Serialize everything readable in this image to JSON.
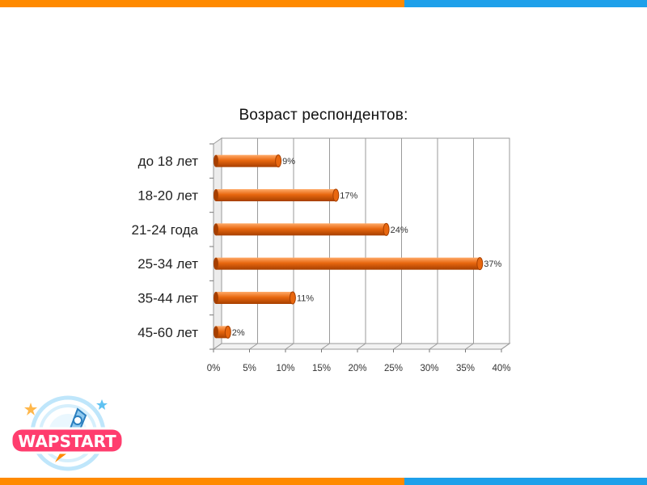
{
  "colors": {
    "band_orange": "#ff8a00",
    "band_blue": "#1ea0ea",
    "bar": "#e8670f",
    "bar_light": "#ffab6a",
    "bar_dark": "#a63f00"
  },
  "chart_data": {
    "type": "bar",
    "orientation": "horizontal",
    "title": "Возраст респондентов:",
    "categories": [
      "до 18 лет",
      "18-20 лет",
      "21-24 года",
      "25-34 лет",
      "35-44 лет",
      "45-60 лет"
    ],
    "values": [
      9,
      17,
      24,
      37,
      11,
      2
    ],
    "data_labels": [
      "9%",
      "17%",
      "24%",
      "37%",
      "11%",
      "2%"
    ],
    "x_ticks": [
      "0%",
      "5%",
      "10%",
      "15%",
      "20%",
      "25%",
      "30%",
      "35%",
      "40%"
    ],
    "xlim": [
      0,
      40
    ],
    "grid": true,
    "legend": "none",
    "style": "3d-cylinder"
  },
  "logo": {
    "text": "WAPSTART",
    "icon": "rocket-icon"
  }
}
